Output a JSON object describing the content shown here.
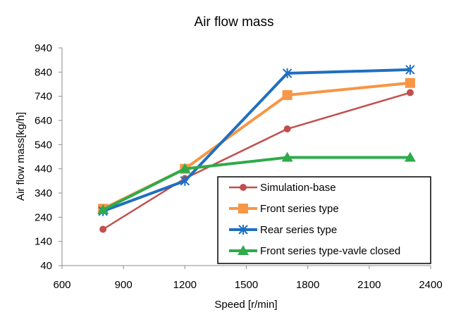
{
  "chart_data": {
    "type": "line",
    "title": "Air flow mass",
    "xlabel": "Speed [r/min]",
    "ylabel": "Air flow mass[kg/h]",
    "xlim": [
      600,
      2400
    ],
    "ylim": [
      40,
      940
    ],
    "xticks": [
      600,
      900,
      1200,
      1500,
      1800,
      2100,
      2400
    ],
    "yticks": [
      40,
      140,
      240,
      340,
      440,
      540,
      640,
      740,
      840,
      940
    ],
    "grid": false,
    "legend_position": "bottom-right",
    "x": [
      800,
      1200,
      1700,
      2300
    ],
    "series": [
      {
        "name": "Simulation-base",
        "values": [
          190,
          400,
          605,
          755
        ],
        "color": "#c0504d",
        "marker": "circle",
        "line_width": 2.5
      },
      {
        "name": "Front series type",
        "values": [
          275,
          440,
          745,
          795
        ],
        "color": "#f79646",
        "marker": "square",
        "line_width": 4
      },
      {
        "name": "Rear series type",
        "values": [
          265,
          390,
          835,
          850
        ],
        "color": "#1f6fbf",
        "marker": "asterisk",
        "line_width": 4
      },
      {
        "name": "Front series type-vavle closed",
        "values": [
          270,
          440,
          487,
          487
        ],
        "color": "#2eab4a",
        "marker": "triangle",
        "line_width": 4
      }
    ]
  }
}
